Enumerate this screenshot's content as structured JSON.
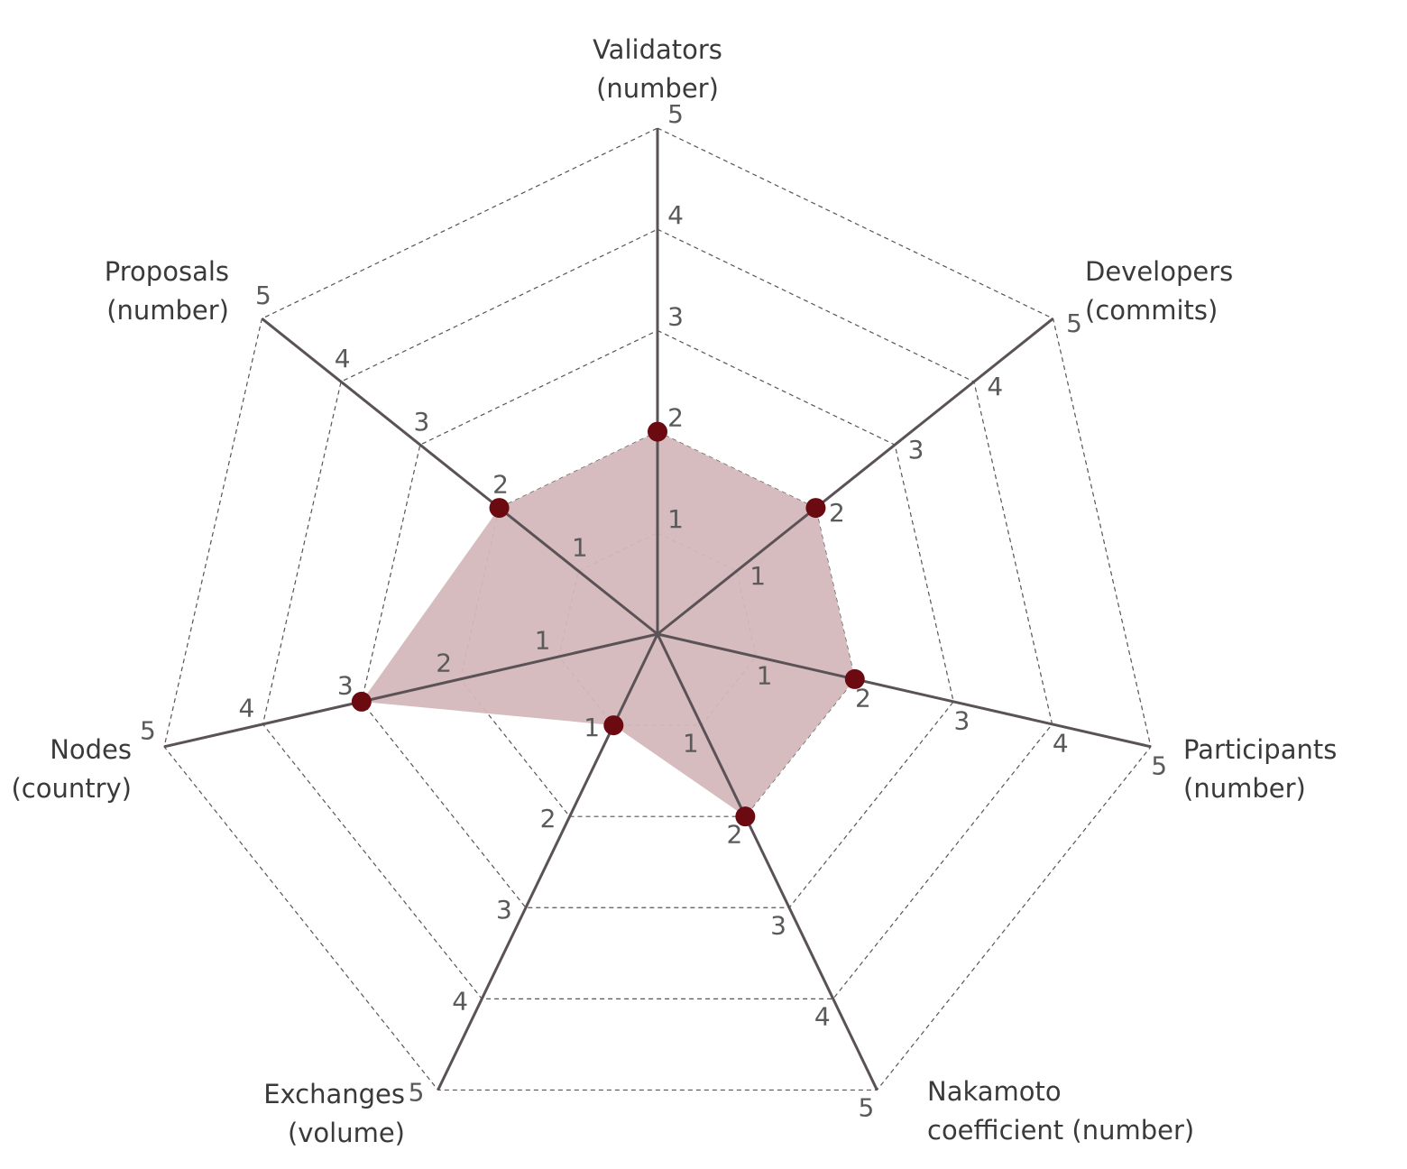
{
  "chart_data": {
    "type": "radar",
    "categories": [
      "Validators\n(number)",
      "Developers\n(commits)",
      "Participants\n(number)",
      "Nakamoto\ncoefficient  (number)",
      "Exchanges\n(volume)",
      "Nodes\n(country)",
      "Proposals\n(number)"
    ],
    "values": [
      2,
      2,
      2,
      2,
      1,
      3,
      2
    ],
    "color": "#6b0a10",
    "fill": "#d4b8bb",
    "rlim": [
      0,
      5
    ],
    "rticks": [
      1,
      2,
      3,
      4,
      5
    ],
    "grid": true
  }
}
